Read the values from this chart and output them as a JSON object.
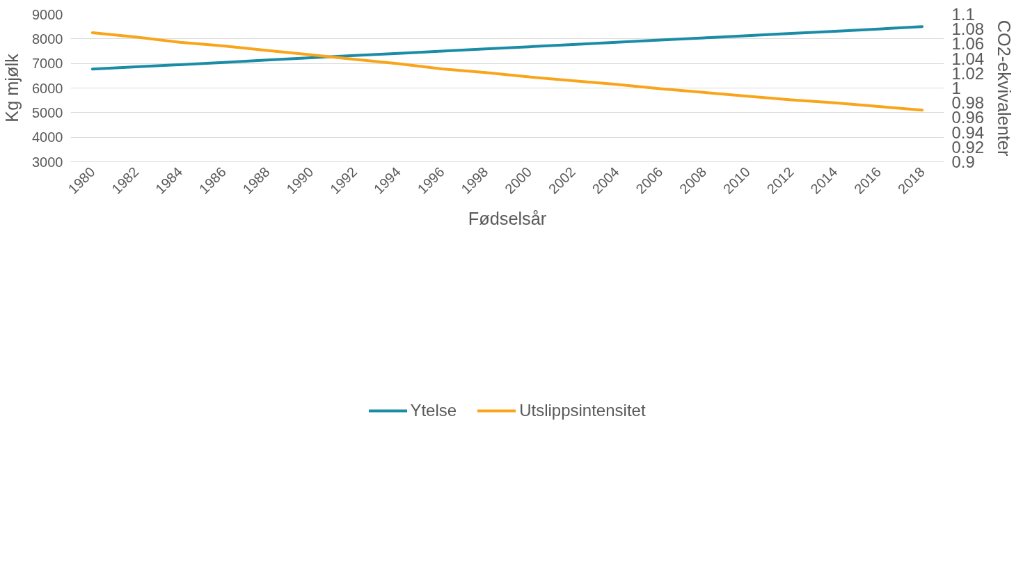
{
  "chart_data": {
    "type": "line",
    "xlabel": "Fødselsår",
    "ylabel": "Kg mjølk",
    "y2label": "CO2-ekvivalenter",
    "categories": [
      "1980",
      "1982",
      "1984",
      "1986",
      "1988",
      "1990",
      "1992",
      "1994",
      "1996",
      "1998",
      "2000",
      "2002",
      "2004",
      "2006",
      "2008",
      "2010",
      "2012",
      "2014",
      "2016",
      "2018"
    ],
    "series": [
      {
        "name": "Ytelse",
        "color": "#1b8ca6",
        "values": [
          6770,
          6860,
          6950,
          7040,
          7140,
          7230,
          7320,
          7410,
          7500,
          7590,
          7680,
          7770,
          7860,
          7950,
          8040,
          8130,
          8220,
          8310,
          8400,
          8500
        ]
      },
      {
        "name": "Utslippsintensitet",
        "color": "#f8a51b",
        "axis": "y2",
        "values": [
          1.075,
          1.069,
          1.062,
          1.057,
          1.051,
          1.045,
          1.039,
          1.033,
          1.026,
          1.021,
          1.015,
          1.01,
          1.005,
          0.999,
          0.994,
          0.989,
          0.984,
          0.98,
          0.975,
          0.97
        ]
      }
    ],
    "ylim": [
      3000,
      9000
    ],
    "yticks": [
      3000,
      4000,
      5000,
      6000,
      7000,
      8000,
      9000
    ],
    "y2lim": [
      0.9,
      1.1
    ],
    "y2ticks": [
      0.9,
      0.92,
      0.94,
      0.96,
      0.98,
      1,
      1.02,
      1.04,
      1.06,
      1.08,
      1.1
    ],
    "grid": "y",
    "legend": "bottom",
    "marker": "none",
    "line_style": "solid"
  }
}
